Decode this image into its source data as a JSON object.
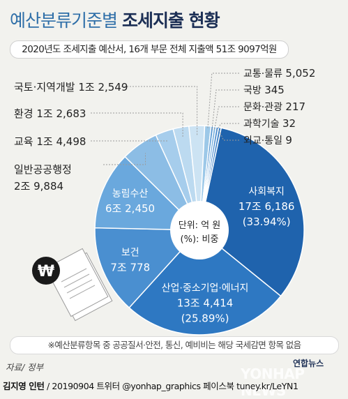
{
  "title": {
    "light": "예산분류기준별",
    "bold": "조세지출 현황"
  },
  "subtitle": "2020년도 조세지출 예산서, 16개 부문 전체 지출액 51조 9097억원",
  "footnote": "※예산분류항목 중 공공질서·안전, 통신, 예비비는 해당 국세감면 항목 없음",
  "source": "자료/ 정부",
  "credit": {
    "author": "김지영 인턴",
    "rest": " / 20190904  트위터 @yonhap_graphics  페이스북 tuney.kr/LeYN1"
  },
  "brand": "연합뉴스",
  "watermark": "YONHAP NEWS",
  "center_label": {
    "line1": "단위: 억 원",
    "line2": "(%): 비중"
  },
  "chart_data": {
    "type": "pie",
    "title": "예산분류기준별 조세지출 현황",
    "unit": "억 원",
    "slices": [
      {
        "name": "사회복지",
        "value_label": "17조 6,186",
        "value": 176186,
        "percent_label": "(33.94%)",
        "color": "#1f63ad",
        "text_color": "#ffffff"
      },
      {
        "name": "산업·중소기업·에너지",
        "value_label": "13조 4,414",
        "value": 134414,
        "percent_label": "(25.89%)",
        "color": "#2e78c2",
        "text_color": "#ffffff"
      },
      {
        "name": "보건",
        "value_label": "7조 778",
        "value": 70778,
        "color": "#4a8fd0",
        "text_color": "#ffffff"
      },
      {
        "name": "농림수산",
        "value_label": "6조 2,450",
        "value": 62450,
        "color": "#6aa8dd",
        "text_color": "#ffffff"
      },
      {
        "name": "일반공공행정",
        "value_label": "2조 9,884",
        "value": 29884,
        "color": "#8cbde5",
        "text_color": "#222222"
      },
      {
        "name": "교육",
        "value_label": "1조 4,498",
        "value": 14498,
        "color": "#a6cdec",
        "text_color": "#222222"
      },
      {
        "name": "환경",
        "value_label": "1조 2,683",
        "value": 12683,
        "color": "#bcdaf0",
        "text_color": "#222222"
      },
      {
        "name": "국토·지역개발",
        "value_label": "1조 2,549",
        "value": 12549,
        "color": "#cce3f3",
        "text_color": "#222222"
      },
      {
        "name": "교통·물류",
        "value_label": "5,052",
        "value": 5052,
        "color": "#9cc8e8",
        "text_color": "#222222"
      },
      {
        "name": "국방",
        "value_label": "345",
        "value": 345,
        "color": "#5a9ad4",
        "text_color": "#222222"
      },
      {
        "name": "문화·관광",
        "value_label": "217",
        "value": 217,
        "color": "#7fb5e0",
        "text_color": "#222222"
      },
      {
        "name": "과학기술",
        "value_label": "32",
        "value": 32,
        "color": "#4f8fcf",
        "text_color": "#222222"
      },
      {
        "name": "외교·통일",
        "value_label": "9",
        "value": 9,
        "color": "#3a80c6",
        "text_color": "#222222"
      }
    ]
  }
}
